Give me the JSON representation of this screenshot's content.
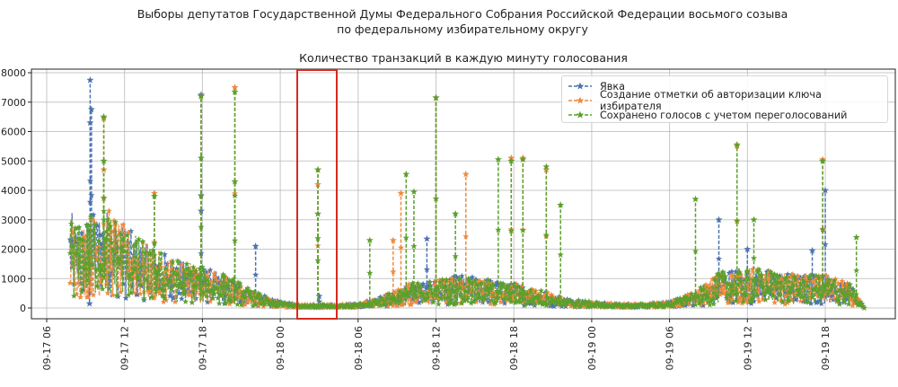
{
  "figure": {
    "suptitle_line1": "Выборы депутатов Государственной Думы Федерального Собрания Российской Федерации восьмого созыва",
    "suptitle_line2": "по федеральному избирательному округу",
    "axes_title": "Количество транзакций в каждую минуту голосования"
  },
  "colors": {
    "series_yavka": "#4c72b0",
    "series_auth": "#f08a3c",
    "series_saved": "#5aa02c",
    "grid": "#b0b0b0",
    "highlight_box": "#d62a1e"
  },
  "chart_data": {
    "type": "line",
    "title": "Количество транзакций в каждую минуту голосования",
    "xlabel": "",
    "ylabel": "",
    "ylim": [
      0,
      8000
    ],
    "xlim": [
      "09-17 05:00",
      "09-20 00:00"
    ],
    "grid": true,
    "legend_position": "upper right",
    "marker": "star",
    "linestyle": "dashed",
    "yticks": [
      "0",
      "1000",
      "2000",
      "3000",
      "4000",
      "5000",
      "6000",
      "7000",
      "8000"
    ],
    "xticks": [
      "09-17 06",
      "09-17 12",
      "09-17 18",
      "09-18 00",
      "09-18 06",
      "09-18 12",
      "09-18 18",
      "09-19 00",
      "09-19 06",
      "09-19 12",
      "09-19 18"
    ],
    "legend": [
      "Явка",
      "Создание отметки об авторизации ключа избирателя",
      "Сохранено голосов с учетом переголосований"
    ],
    "annotation": {
      "type": "rectangle",
      "color": "red",
      "x_from": "09-18 01:20",
      "x_to": "09-18 04:20",
      "description": "highlighted night period with isolated spike"
    },
    "envelope_hours_from_0917_06": [
      1.8,
      2.5,
      3.5,
      4.5,
      6.0,
      8.0,
      10.0,
      12.0,
      14.0,
      16.0,
      18.0,
      19.5,
      21.0,
      24.0,
      26.0,
      28.0,
      30.0,
      32.0,
      34.0,
      36.0,
      38.0,
      40.0,
      42.0,
      44.0,
      46.0,
      48.0,
      50.0,
      52.0,
      54.0,
      56.0,
      58.0,
      60.0,
      62.0,
      63.0
    ],
    "envelope_typical_level": [
      2400,
      2000,
      2300,
      2500,
      2000,
      1500,
      1200,
      1000,
      800,
      400,
      150,
      80,
      80,
      100,
      300,
      600,
      700,
      800,
      700,
      600,
      450,
      250,
      150,
      100,
      100,
      150,
      400,
      900,
      1000,
      900,
      800,
      800,
      600,
      0
    ],
    "series": [
      {
        "name": "Явка",
        "peaks": [
          [
            3.35,
            7750
          ],
          [
            3.35,
            6300
          ],
          [
            3.45,
            6750
          ],
          [
            3.3,
            150
          ],
          [
            11.9,
            7250
          ],
          [
            11.9,
            3300
          ],
          [
            16.1,
            2100
          ],
          [
            21.0,
            400
          ],
          [
            29.3,
            2350
          ],
          [
            30.0,
            7150
          ],
          [
            51.8,
            3000
          ],
          [
            54.0,
            2000
          ],
          [
            60.0,
            4000
          ],
          [
            59.0,
            1950
          ]
        ]
      },
      {
        "name": "Создание отметки об авторизации ключа избирателя",
        "peaks": [
          [
            4.4,
            6450
          ],
          [
            4.4,
            4700
          ],
          [
            8.3,
            3900
          ],
          [
            11.9,
            7200
          ],
          [
            14.5,
            7500
          ],
          [
            20.9,
            4200
          ],
          [
            20.9,
            4700
          ],
          [
            26.7,
            2300
          ],
          [
            27.3,
            3900
          ],
          [
            30.0,
            7150
          ],
          [
            32.3,
            4550
          ],
          [
            35.8,
            5100
          ],
          [
            36.7,
            5100
          ],
          [
            38.5,
            4700
          ],
          [
            53.2,
            5500
          ],
          [
            59.8,
            5050
          ]
        ]
      },
      {
        "name": "Сохранено голосов с учетом переголосований",
        "peaks": [
          [
            4.4,
            6500
          ],
          [
            4.4,
            5000
          ],
          [
            8.3,
            3800
          ],
          [
            11.9,
            7200
          ],
          [
            11.9,
            5100
          ],
          [
            14.5,
            7350
          ],
          [
            14.5,
            4300
          ],
          [
            20.9,
            4700
          ],
          [
            20.9,
            3200
          ],
          [
            24.9,
            2300
          ],
          [
            27.7,
            4550
          ],
          [
            28.3,
            3950
          ],
          [
            30.0,
            7150
          ],
          [
            31.5,
            3200
          ],
          [
            34.8,
            5050
          ],
          [
            35.8,
            5000
          ],
          [
            36.7,
            5050
          ],
          [
            38.5,
            4800
          ],
          [
            39.6,
            3500
          ],
          [
            50.0,
            3700
          ],
          [
            53.2,
            5550
          ],
          [
            54.5,
            3000
          ],
          [
            59.8,
            5000
          ],
          [
            62.4,
            2400
          ]
        ]
      }
    ]
  }
}
